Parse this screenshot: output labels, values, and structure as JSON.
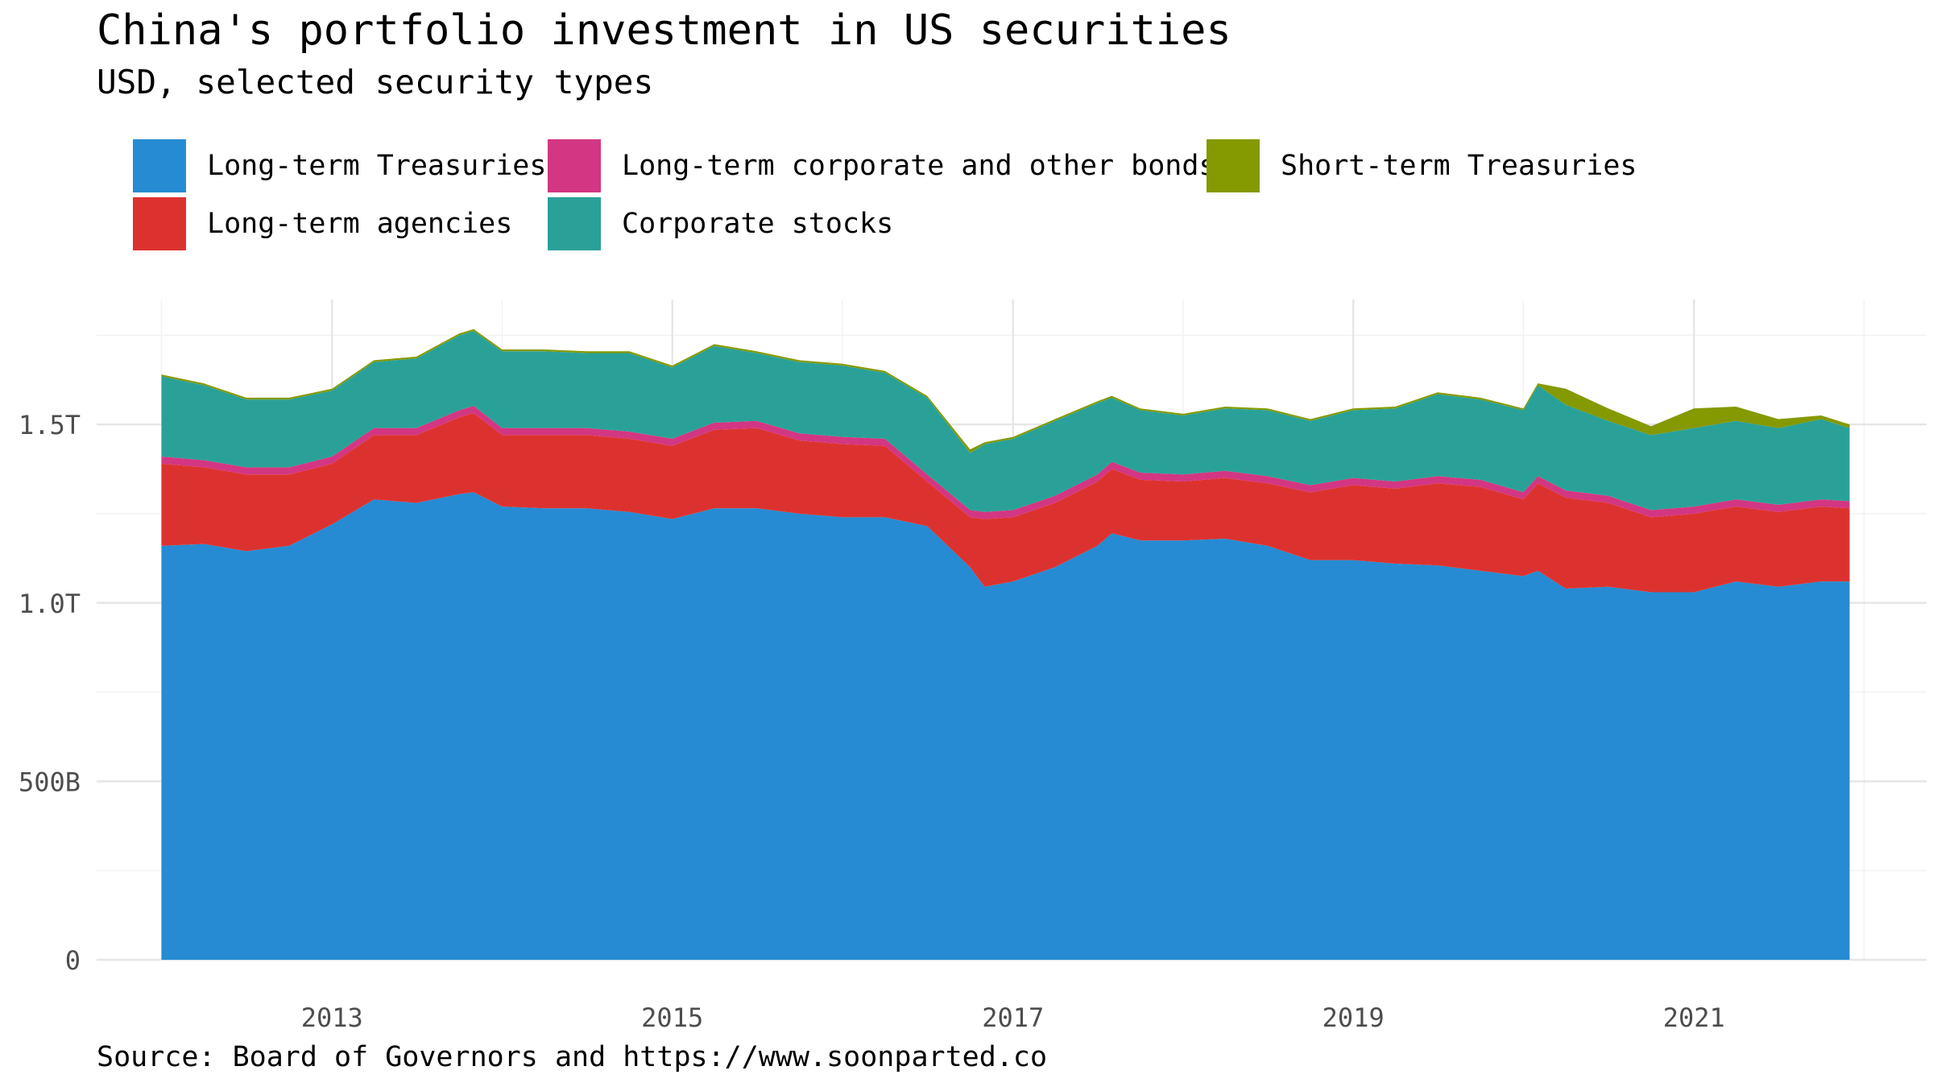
{
  "chart_data": {
    "type": "area",
    "stacked": true,
    "title": "China's portfolio investment in US securities",
    "subtitle": "USD, selected security types",
    "caption": "Source: Board of Governors and https://www.soonparted.co",
    "ylim": [
      0,
      1850000000000
    ],
    "xlim": [
      "2011-08-15",
      "2022-05-15"
    ],
    "x_tick_labels": [
      "2013",
      "2015",
      "2017",
      "2019",
      "2021"
    ],
    "x_tick_dates": [
      "2013-01-01",
      "2015-01-01",
      "2017-01-01",
      "2019-01-01",
      "2021-01-01"
    ],
    "x_minor_dates": [
      "2012-01-01",
      "2014-01-01",
      "2016-01-01",
      "2018-01-01",
      "2020-01-01",
      "2022-01-01"
    ],
    "y_ticks": [
      {
        "value": 0,
        "label": "0"
      },
      {
        "value": 500000000000,
        "label": "500B"
      },
      {
        "value": 1000000000000,
        "label": "1.0T"
      },
      {
        "value": 1500000000000,
        "label": "1.5T"
      }
    ],
    "y_minor_ticks": [
      250000000000,
      750000000000,
      1250000000000,
      1750000000000
    ],
    "grid": true,
    "legend_position": "top",
    "legend": [
      {
        "key": "long_term_treasuries",
        "label": "Long-term Treasuries",
        "color": "#268bd2"
      },
      {
        "key": "long_term_agencies",
        "label": "Long-term agencies",
        "color": "#dc322f"
      },
      {
        "key": "long_term_corporate_bonds",
        "label": "Long-term corporate and other bonds",
        "color": "#d33682"
      },
      {
        "key": "corporate_stocks",
        "label": "Corporate stocks",
        "color": "#2aa198"
      },
      {
        "key": "short_term_treasuries",
        "label": "Short-term Treasuries",
        "color": "#859900"
      }
    ],
    "x": [
      "2012-01",
      "2012-04",
      "2012-07",
      "2012-10",
      "2013-01",
      "2013-04",
      "2013-07",
      "2013-10",
      "2013-11",
      "2014-01",
      "2014-04",
      "2014-07",
      "2014-10",
      "2015-01",
      "2015-04",
      "2015-07",
      "2015-10",
      "2016-01",
      "2016-04",
      "2016-07",
      "2016-10",
      "2016-11",
      "2017-01",
      "2017-04",
      "2017-07",
      "2017-08",
      "2017-10",
      "2018-01",
      "2018-04",
      "2018-07",
      "2018-10",
      "2019-01",
      "2019-04",
      "2019-07",
      "2019-10",
      "2020-01",
      "2020-02",
      "2020-04",
      "2020-07",
      "2020-10",
      "2021-01",
      "2021-04",
      "2021-07",
      "2021-10",
      "2021-12"
    ],
    "series": [
      {
        "name": "Long-term Treasuries",
        "values": [
          1160,
          1165,
          1145,
          1160,
          1220,
          1290,
          1280,
          1305,
          1310,
          1270,
          1265,
          1265,
          1255,
          1235,
          1265,
          1265,
          1250,
          1240,
          1240,
          1215,
          1100,
          1045,
          1060,
          1100,
          1160,
          1195,
          1175,
          1175,
          1180,
          1160,
          1120,
          1120,
          1110,
          1105,
          1090,
          1075,
          1090,
          1040,
          1045,
          1030,
          1030,
          1060,
          1045,
          1060,
          1060
        ]
      },
      {
        "name": "Long-term agencies",
        "values": [
          230,
          215,
          215,
          200,
          170,
          180,
          190,
          215,
          222,
          200,
          205,
          205,
          205,
          205,
          220,
          225,
          205,
          205,
          200,
          125,
          140,
          190,
          180,
          180,
          180,
          180,
          170,
          165,
          170,
          175,
          190,
          210,
          210,
          230,
          235,
          215,
          245,
          255,
          235,
          210,
          220,
          210,
          210,
          210,
          205
        ]
      },
      {
        "name": "Long-term corporate and other bonds",
        "values": [
          20,
          20,
          20,
          20,
          20,
          20,
          20,
          20,
          20,
          20,
          20,
          20,
          20,
          20,
          20,
          20,
          20,
          20,
          20,
          20,
          20,
          20,
          20,
          20,
          20,
          20,
          20,
          20,
          20,
          20,
          20,
          20,
          20,
          20,
          20,
          20,
          20,
          20,
          20,
          20,
          20,
          20,
          20,
          20,
          20
        ]
      },
      {
        "name": "Corporate stocks",
        "values": [
          225,
          210,
          190,
          190,
          185,
          185,
          195,
          210,
          210,
          215,
          215,
          210,
          220,
          200,
          215,
          190,
          200,
          200,
          185,
          215,
          160,
          190,
          200,
          210,
          200,
          180,
          175,
          165,
          175,
          185,
          180,
          190,
          205,
          230,
          225,
          230,
          255,
          240,
          210,
          210,
          220,
          220,
          215,
          225,
          205
        ]
      },
      {
        "name": "Short-term Treasuries",
        "values": [
          5,
          5,
          5,
          5,
          5,
          5,
          5,
          5,
          5,
          5,
          5,
          5,
          5,
          5,
          5,
          5,
          5,
          5,
          5,
          5,
          10,
          5,
          5,
          5,
          5,
          5,
          5,
          5,
          5,
          5,
          5,
          5,
          5,
          5,
          5,
          5,
          5,
          45,
          35,
          25,
          55,
          40,
          25,
          10,
          10
        ]
      }
    ],
    "value_unit": "billions USD"
  }
}
